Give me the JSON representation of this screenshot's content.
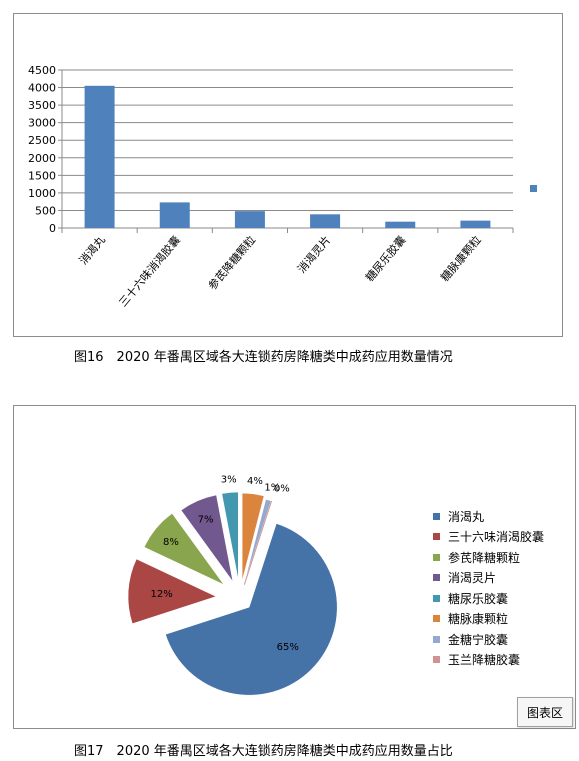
{
  "chart_data": [
    {
      "type": "bar",
      "title": "",
      "categories": [
        "消渴丸",
        "三十六味消渴胶囊",
        "参芪降糖颗粒",
        "消渴灵片",
        "糖尿乐胶囊",
        "糖脉康颗粒"
      ],
      "series": [
        {
          "values": [
            4050,
            730,
            480,
            390,
            180,
            210
          ]
        }
      ],
      "ylim": [
        0,
        4500
      ],
      "yticks": [
        0,
        500,
        1000,
        1500,
        2000,
        2500,
        3000,
        3500,
        4000,
        4500
      ],
      "ytick_labels": [
        "0",
        "500",
        "1000",
        "1500",
        "2000",
        "2500",
        "3000",
        "3500",
        "4000",
        "4500"
      ],
      "grid": true,
      "legend_position": "right",
      "color": "#4f81bd"
    },
    {
      "type": "pie",
      "title": "",
      "labels": [
        "消渴丸",
        "三十六味消渴胶囊",
        "参芪降糖颗粒",
        "消渴灵片",
        "糖尿乐胶囊",
        "糖脉康颗粒",
        "金糖宁胶囊",
        "玉兰降糖胶囊"
      ],
      "values": [
        65,
        12,
        8,
        7,
        3,
        4,
        1,
        0
      ],
      "data_labels": [
        "65%",
        "12%",
        "8%",
        "7%",
        "3%",
        "4%",
        "1%",
        "0%"
      ],
      "colors": [
        "#4572a7",
        "#aa4643",
        "#89a54e",
        "#71588f",
        "#4198af",
        "#db843d",
        "#93a9cf",
        "#d19392"
      ],
      "exploded": true,
      "legend_position": "right"
    }
  ],
  "captions": {
    "fig16": "图16　2020 年番禺区域各大连锁药房降糖类中成药应用数量情况",
    "fig17": "图17　2020 年番禺区域各大连锁药房降糖类中成药应用数量占比"
  },
  "chart_area_tag": "图表区"
}
